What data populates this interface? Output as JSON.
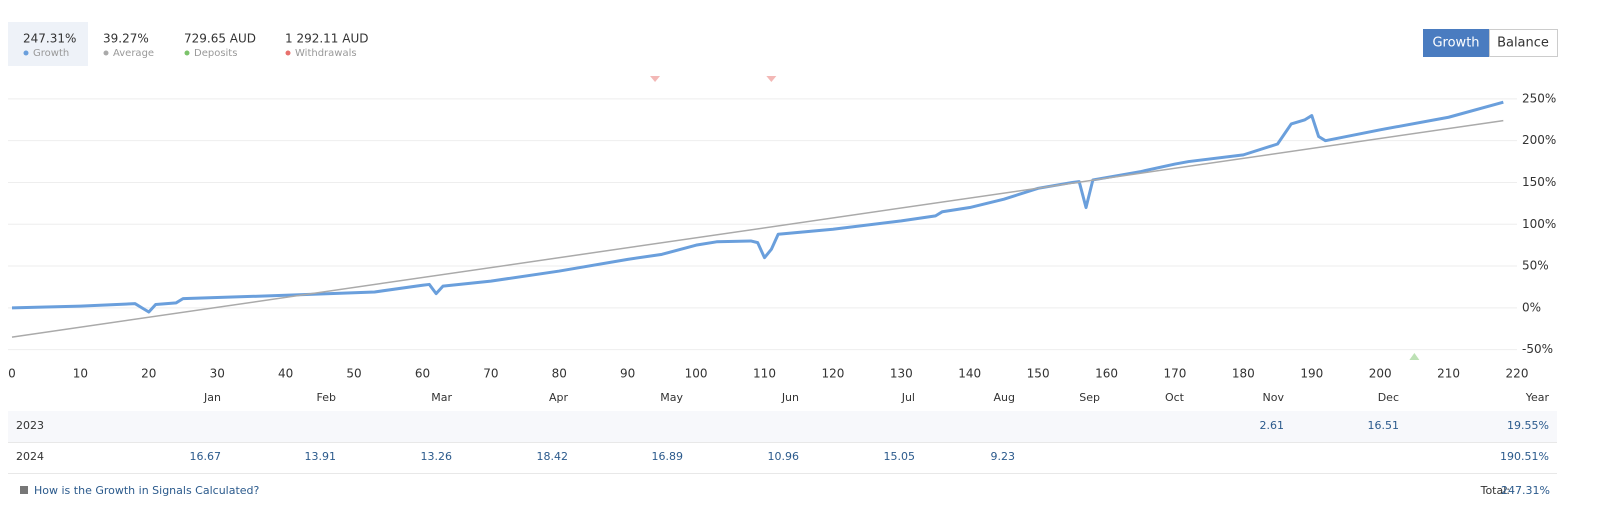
{
  "buttons": [
    "Growth",
    "Balance"
  ],
  "chart_data": {
    "type": "line",
    "series": [
      {
        "name": "Growth",
        "summary": "247.31%",
        "color": "#6a9fdc",
        "x": [
          0,
          10,
          18,
          19,
          20,
          21,
          24,
          25,
          40,
          50,
          53,
          60,
          61,
          62,
          63,
          70,
          80,
          90,
          95,
          100,
          103,
          108,
          109,
          110,
          111,
          112,
          120,
          130,
          135,
          136,
          140,
          145,
          150,
          155,
          156,
          157,
          158,
          165,
          170,
          172,
          180,
          185,
          187,
          189,
          190,
          191,
          192,
          200,
          210,
          218
        ],
        "values": [
          0,
          2,
          5,
          0,
          -5,
          4,
          6,
          11,
          15,
          18,
          19,
          27,
          28,
          17,
          26,
          32,
          44,
          58,
          64,
          75,
          79,
          80,
          78,
          60,
          70,
          88,
          94,
          104,
          110,
          115,
          120,
          130,
          143,
          150,
          151,
          120,
          153,
          163,
          172,
          175,
          183,
          196,
          220,
          225,
          230,
          205,
          200,
          213,
          228,
          246
        ]
      },
      {
        "name": "Average",
        "summary": "39.27%",
        "color": "#aaaaaa",
        "x": [
          0,
          218
        ],
        "values": [
          -35,
          224
        ]
      }
    ],
    "markers": [
      {
        "name": "Deposits",
        "summary": "729.65 AUD",
        "color": "#7cc36b",
        "position": "bottom",
        "x": [
          205
        ]
      },
      {
        "name": "Withdrawals",
        "summary": "1 292.11 AUD",
        "color": "#e8716d",
        "position": "top",
        "x": [
          94,
          111
        ]
      }
    ],
    "xlim": [
      0,
      220
    ],
    "xticks": [
      0,
      10,
      20,
      30,
      40,
      50,
      60,
      70,
      80,
      90,
      100,
      110,
      120,
      130,
      140,
      150,
      160,
      170,
      180,
      190,
      200,
      210,
      220
    ],
    "ylim": [
      -60,
      263
    ],
    "yticks": [
      {
        "value": -50,
        "label": "-50%"
      },
      {
        "value": 0,
        "label": "0%"
      },
      {
        "value": 50,
        "label": "50%"
      },
      {
        "value": 100,
        "label": "100%"
      },
      {
        "value": 150,
        "label": "150%"
      },
      {
        "value": 200,
        "label": "200%"
      },
      {
        "value": 250,
        "label": "250%"
      }
    ],
    "grid": true
  },
  "table": {
    "columns": [
      "Jan",
      "Feb",
      "Mar",
      "Apr",
      "May",
      "Jun",
      "Jul",
      "Aug",
      "Sep",
      "Oct",
      "Nov",
      "Dec",
      "Year"
    ],
    "rows": [
      {
        "year": "2023",
        "cells": [
          null,
          null,
          null,
          null,
          null,
          null,
          null,
          null,
          null,
          null,
          2.61,
          16.51,
          "19.55%"
        ]
      },
      {
        "year": "2024",
        "cells": [
          16.67,
          13.91,
          13.26,
          18.42,
          16.89,
          10.96,
          15.05,
          9.23,
          null,
          null,
          null,
          null,
          "190.51%"
        ]
      }
    ]
  },
  "footer": {
    "link": "How is the Growth in Signals Calculated?",
    "total_label": "Total:",
    "total_value": "247.31%"
  }
}
